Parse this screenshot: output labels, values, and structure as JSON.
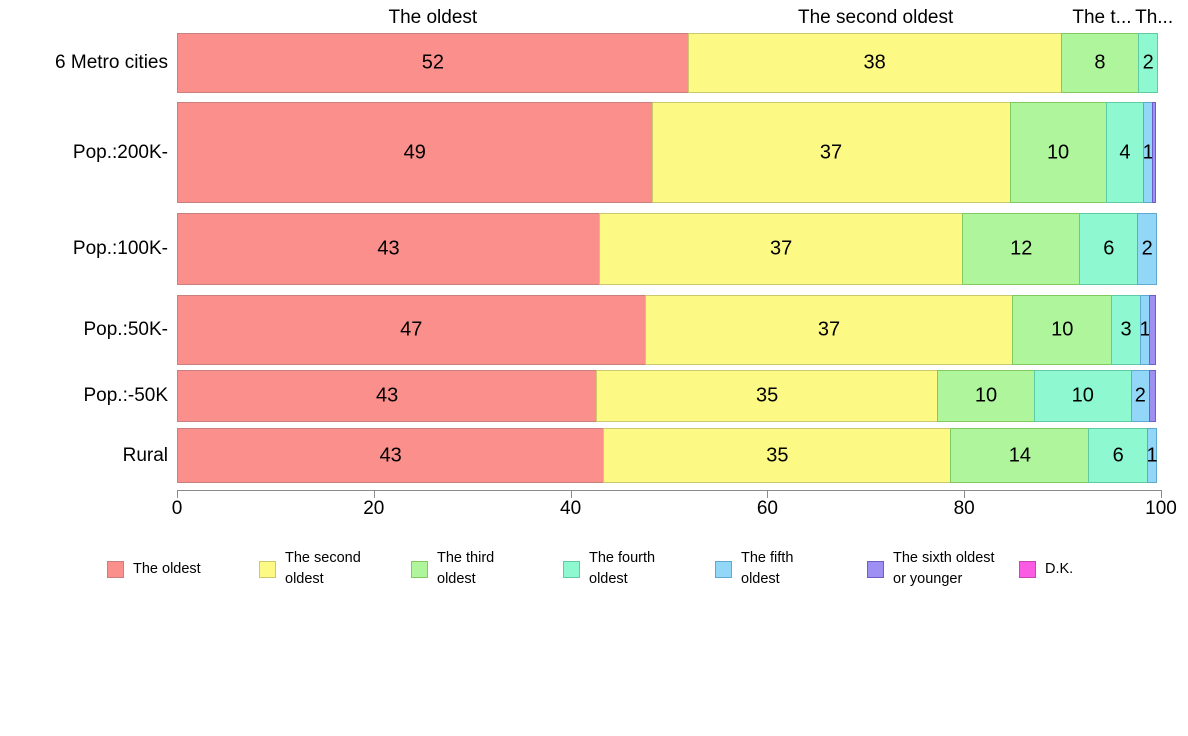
{
  "chart_data": {
    "type": "bar",
    "stacked": true,
    "orientation": "horizontal",
    "title": "",
    "xlabel": "",
    "ylabel": "",
    "xlim": [
      0,
      100
    ],
    "x_ticks": [
      "0",
      "20",
      "40",
      "60",
      "80",
      "100"
    ],
    "grid": false,
    "legend_position": "bottom",
    "categories": [
      "6 Metro cities",
      "Pop.:200K-",
      "Pop.:100K-",
      "Pop.:50K-",
      "Pop.:-50K",
      "Rural"
    ],
    "series": [
      {
        "name": "The oldest",
        "legend_label": "The oldest",
        "color": "#fa8f8c",
        "border": "#c87f7d",
        "values": [
          52,
          49,
          43,
          47,
          43,
          43
        ]
      },
      {
        "name": "The second oldest",
        "legend_label": "The second\noldest",
        "color": "#fcf985",
        "border": "#cbc96b",
        "values": [
          38,
          37,
          37,
          37,
          35,
          35
        ]
      },
      {
        "name": "The third oldest",
        "legend_label": "The third\noldest",
        "color": "#aef59c",
        "border": "#82c960",
        "values": [
          8,
          10,
          12,
          10,
          10,
          14
        ]
      },
      {
        "name": "The fourth oldest",
        "legend_label": "The fourth\noldest",
        "color": "#8ef8d0",
        "border": "#5fcba4",
        "values": [
          2,
          4,
          6,
          3,
          10,
          6
        ]
      },
      {
        "name": "The fifth oldest",
        "legend_label": "The fifth\noldest",
        "color": "#93d7f8",
        "border": "#5fa8cf",
        "values": [
          0,
          1,
          2,
          1,
          2,
          1
        ]
      },
      {
        "name": "The sixth oldest or younger",
        "legend_label": "The sixth oldest\nor younger",
        "color": "#9e90f2",
        "border": "#6c5fc9",
        "values": [
          0,
          0.4,
          0,
          0.7,
          0.7,
          0
        ]
      },
      {
        "name": "D.K.",
        "legend_label": "D.K.",
        "color": "#fa5be2",
        "border": "#c944b4",
        "values": [
          0,
          0,
          0,
          0,
          0,
          0
        ]
      }
    ],
    "segment_labels_min_value": 1,
    "top_labels": [
      {
        "text": "The oldest",
        "x_pct": 26
      },
      {
        "text": "The second oldest",
        "x_pct": 71
      },
      {
        "text": "The t...",
        "x_pct": 94
      },
      {
        "text": "Th...",
        "x_pct": 99.3
      }
    ]
  }
}
